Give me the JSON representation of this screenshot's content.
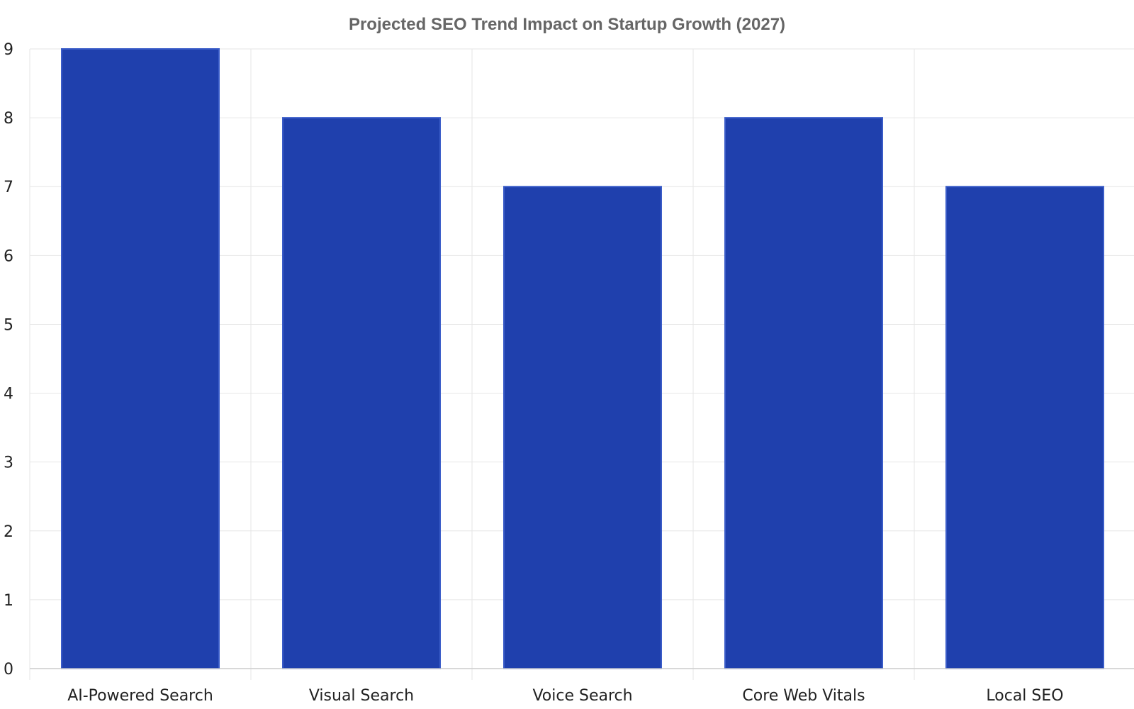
{
  "chart_data": {
    "type": "bar",
    "title": "Projected SEO Trend Impact on Startup Growth (2027)",
    "xlabel": "",
    "ylabel": "",
    "categories": [
      "AI-Powered Search",
      "Visual Search",
      "Voice Search",
      "Core Web Vitals",
      "Local SEO"
    ],
    "values": [
      9,
      8,
      7,
      8,
      7
    ],
    "ylim": [
      0,
      9
    ],
    "yticks": [
      0,
      1,
      2,
      3,
      4,
      5,
      6,
      7,
      8,
      9
    ],
    "grid": true,
    "legend": "none",
    "colors": {
      "bar_fill": "#1f40ad",
      "bar_edge": "#3a5cc8",
      "grid": "#e6e6e6",
      "axis": "#cccccc"
    }
  }
}
